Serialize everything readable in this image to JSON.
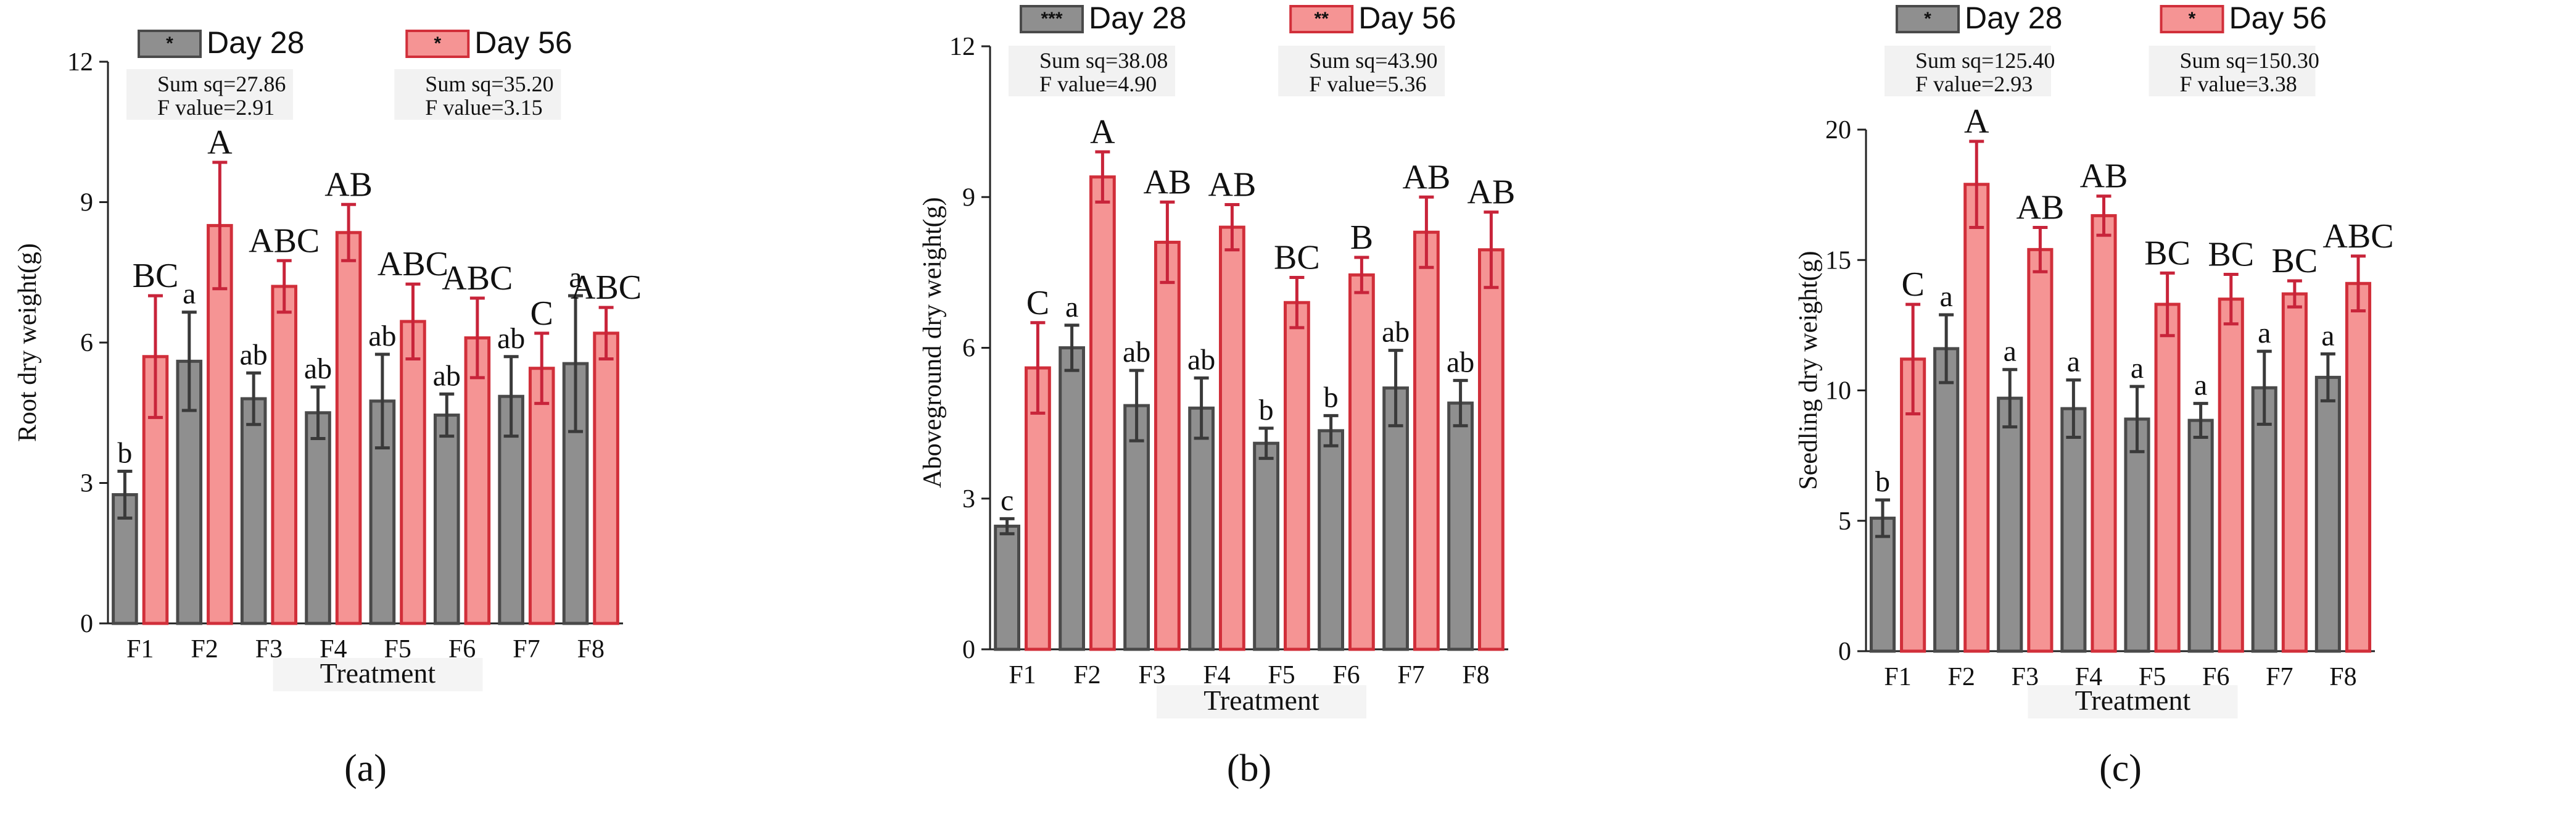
{
  "colors": {
    "day28_fill": "#8f8f8f",
    "day28_stroke": "#4a4a4a",
    "day56_fill": "#f59494",
    "day56_stroke": "#d12f3a",
    "error_bar_day28": "#3a3a3a",
    "error_bar_day56": "#c8243a",
    "axis": "#222222",
    "stats_box": "#f2f2f2"
  },
  "chart_data": [
    {
      "type": "bar",
      "panel_label": "(a)",
      "panel_letter": "a",
      "xlabel": "Treatment",
      "ylabel": "Root dry weight(g)",
      "categories": [
        "F1",
        "F2",
        "F3",
        "F4",
        "F5",
        "F6",
        "F7",
        "F8"
      ],
      "ylim": [
        0,
        12
      ],
      "yticks": [
        0,
        3,
        6,
        9,
        12
      ],
      "legend": {
        "placement": "top"
      },
      "series": [
        {
          "name": "Day 28",
          "significance": "*",
          "sum_sq": "Sum sq=27.86",
          "f_value": "F value=2.91",
          "values": [
            2.75,
            5.6,
            4.8,
            4.5,
            4.75,
            4.45,
            4.85,
            5.55
          ],
          "errors": [
            0.5,
            1.05,
            0.55,
            0.55,
            1.0,
            0.45,
            0.85,
            1.45
          ],
          "letters": [
            "b",
            "a",
            "ab",
            "ab",
            "ab",
            "ab",
            "ab",
            "a"
          ]
        },
        {
          "name": "Day 56",
          "significance": "*",
          "sum_sq": "Sum sq=35.20",
          "f_value": "F value=3.15",
          "values": [
            5.7,
            8.5,
            7.2,
            8.35,
            6.45,
            6.1,
            5.45,
            6.2
          ],
          "errors": [
            1.3,
            1.35,
            0.55,
            0.6,
            0.8,
            0.85,
            0.75,
            0.55
          ],
          "letters": [
            "BC",
            "A",
            "ABC",
            "AB",
            "ABC",
            "ABC",
            "C",
            "ABC"
          ]
        }
      ]
    },
    {
      "type": "bar",
      "panel_label": "(b)",
      "panel_letter": "b",
      "xlabel": "Treatment",
      "ylabel": "Aboveground dry weight(g)",
      "categories": [
        "F1",
        "F2",
        "F3",
        "F4",
        "F5",
        "F6",
        "F7",
        "F8"
      ],
      "ylim": [
        0,
        12
      ],
      "yticks": [
        0,
        3,
        6,
        9,
        12
      ],
      "legend": {
        "placement": "top"
      },
      "series": [
        {
          "name": "Day 28",
          "significance": "***",
          "sum_sq": "Sum sq=38.08",
          "f_value": "F value=4.90",
          "values": [
            2.45,
            6.0,
            4.85,
            4.8,
            4.1,
            4.35,
            5.2,
            4.9
          ],
          "errors": [
            0.15,
            0.45,
            0.7,
            0.6,
            0.3,
            0.3,
            0.75,
            0.45
          ],
          "letters": [
            "c",
            "a",
            "ab",
            "ab",
            "b",
            "b",
            "ab",
            "ab"
          ]
        },
        {
          "name": "Day 56",
          "significance": "**",
          "sum_sq": "Sum sq=43.90",
          "f_value": "F value=5.36",
          "values": [
            5.6,
            9.4,
            8.1,
            8.4,
            6.9,
            7.45,
            8.3,
            7.95
          ],
          "errors": [
            0.9,
            0.5,
            0.8,
            0.45,
            0.5,
            0.35,
            0.7,
            0.75
          ],
          "letters": [
            "C",
            "A",
            "AB",
            "AB",
            "BC",
            "B",
            "AB",
            "AB"
          ]
        }
      ]
    },
    {
      "type": "bar",
      "panel_label": "(c)",
      "panel_letter": "c",
      "xlabel": "Treatment",
      "ylabel": "Seedling dry weight(g)",
      "categories": [
        "F1",
        "F2",
        "F3",
        "F4",
        "F5",
        "F6",
        "F7",
        "F8"
      ],
      "ylim": [
        0,
        20
      ],
      "yticks": [
        0,
        5,
        10,
        15,
        20
      ],
      "legend": {
        "placement": "top"
      },
      "series": [
        {
          "name": "Day 28",
          "significance": "*",
          "sum_sq": "Sum sq=125.40",
          "f_value": "F value=2.93",
          "values": [
            5.1,
            11.6,
            9.7,
            9.3,
            8.9,
            8.85,
            10.1,
            10.5
          ],
          "errors": [
            0.7,
            1.3,
            1.1,
            1.1,
            1.25,
            0.65,
            1.4,
            0.9
          ],
          "letters": [
            "b",
            "a",
            "a",
            "a",
            "a",
            "a",
            "a",
            "a"
          ]
        },
        {
          "name": "Day 56",
          "significance": "*",
          "sum_sq": "Sum sq=150.30",
          "f_value": "F value=3.38",
          "values": [
            11.2,
            17.9,
            15.4,
            16.7,
            13.3,
            13.5,
            13.7,
            14.1
          ],
          "errors": [
            2.1,
            1.65,
            0.85,
            0.75,
            1.2,
            0.95,
            0.5,
            1.05
          ],
          "letters": [
            "C",
            "A",
            "AB",
            "AB",
            "BC",
            "BC",
            "BC",
            "ABC"
          ]
        }
      ]
    }
  ]
}
